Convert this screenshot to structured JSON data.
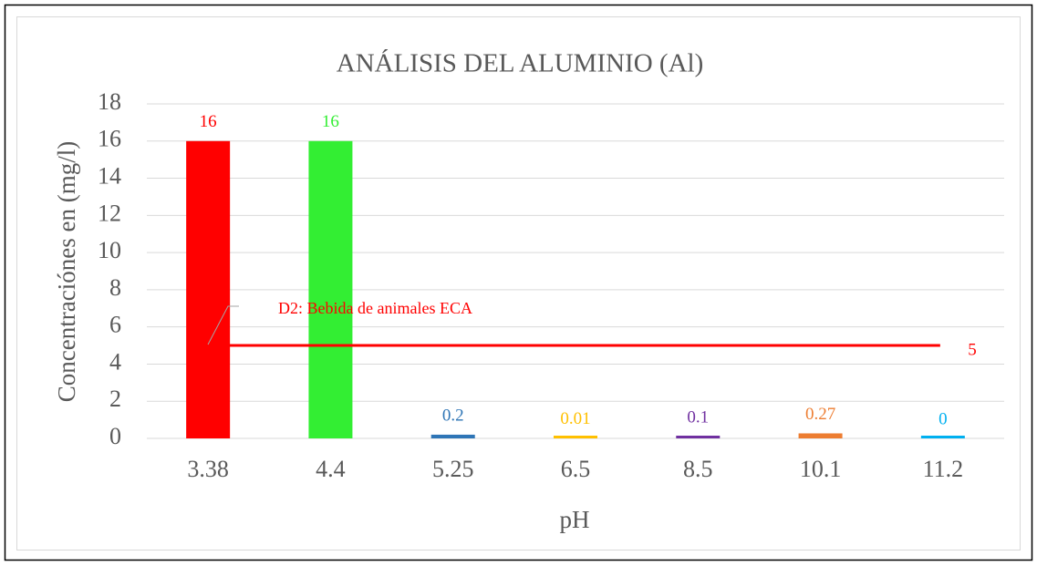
{
  "chart_data": {
    "type": "bar",
    "title": "ANÁLISIS DEL ALUMINIO (Al)",
    "x_label": "pH",
    "y_label": "Concentraciónes en (mg/l)",
    "categories": [
      "3.38",
      "4.4",
      "5.25",
      "6.5",
      "8.5",
      "10.1",
      "11.2"
    ],
    "values": [
      16,
      16,
      0.2,
      0.01,
      0.1,
      0.27,
      0
    ],
    "colors": [
      "#ff0000",
      "#33ee33",
      "#2e75b6",
      "#ffc000",
      "#7030a0",
      "#ed7d31",
      "#00b0f0"
    ],
    "ylim": [
      0,
      18
    ],
    "yticks": [
      0,
      2,
      4,
      6,
      8,
      10,
      12,
      14,
      16,
      18
    ],
    "grid": true,
    "reference_line": {
      "value": 5,
      "label": "D2: Bebida de animales ECA",
      "color": "#ff0000"
    }
  }
}
